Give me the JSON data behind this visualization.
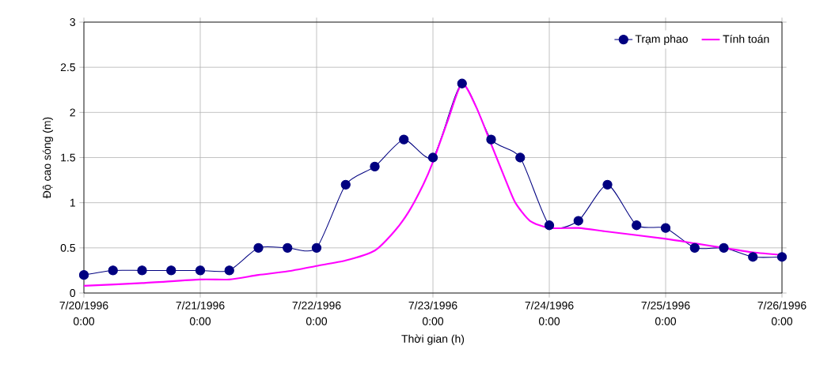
{
  "chart_data": {
    "type": "line",
    "xlabel": "Thời gian (h)",
    "ylabel": "Độ cao sóng (m)",
    "xlim": [
      "1996-07-20T00:00",
      "1996-07-26T00:00"
    ],
    "xticks": [
      {
        "value": "1996-07-20T00:00",
        "label": "7/20/1996 0:00"
      },
      {
        "value": "1996-07-21T00:00",
        "label": "7/21/1996 0:00"
      },
      {
        "value": "1996-07-22T00:00",
        "label": "7/22/1996 0:00"
      },
      {
        "value": "1996-07-23T00:00",
        "label": "7/23/1996 0:00"
      },
      {
        "value": "1996-07-24T00:00",
        "label": "7/24/1996 0:00"
      },
      {
        "value": "1996-07-25T00:00",
        "label": "7/25/1996 0:00"
      },
      {
        "value": "1996-07-26T00:00",
        "label": "7/26/1996 0:00"
      }
    ],
    "ylim": [
      0,
      3
    ],
    "yticks": [
      0,
      0.5,
      1,
      1.5,
      2,
      2.5,
      3
    ],
    "grid": true,
    "legend": "top right",
    "series": [
      {
        "name": "Trạm phao",
        "color": "#000080",
        "marker": "circle",
        "x": [
          "1996-07-20T00:00",
          "1996-07-20T06:00",
          "1996-07-20T12:00",
          "1996-07-20T18:00",
          "1996-07-21T00:00",
          "1996-07-21T06:00",
          "1996-07-21T12:00",
          "1996-07-21T18:00",
          "1996-07-22T00:00",
          "1996-07-22T06:00",
          "1996-07-22T12:00",
          "1996-07-22T18:00",
          "1996-07-23T00:00",
          "1996-07-23T06:00",
          "1996-07-23T12:00",
          "1996-07-23T18:00",
          "1996-07-24T00:00",
          "1996-07-24T06:00",
          "1996-07-24T12:00",
          "1996-07-24T18:00",
          "1996-07-25T00:00",
          "1996-07-25T06:00",
          "1996-07-25T12:00",
          "1996-07-25T18:00",
          "1996-07-26T00:00"
        ],
        "values": [
          0.2,
          0.25,
          0.25,
          0.25,
          0.25,
          0.25,
          0.5,
          0.5,
          0.5,
          1.2,
          1.4,
          1.7,
          1.5,
          2.32,
          1.7,
          1.5,
          0.75,
          0.8,
          1.2,
          0.75,
          0.72,
          0.5,
          0.5,
          0.4,
          0.4
        ]
      },
      {
        "name": "Tính toán",
        "color": "#ff00ff",
        "marker": "none",
        "x": [
          "1996-07-20T00:00",
          "1996-07-20T12:00",
          "1996-07-21T00:00",
          "1996-07-21T06:00",
          "1996-07-21T12:00",
          "1996-07-21T18:00",
          "1996-07-22T00:00",
          "1996-07-22T06:00",
          "1996-07-22T12:00",
          "1996-07-22T16:00",
          "1996-07-22T19:00",
          "1996-07-22T22:00",
          "1996-07-23T00:00",
          "1996-07-23T03:00",
          "1996-07-23T06:00",
          "1996-07-23T09:00",
          "1996-07-23T12:00",
          "1996-07-23T15:00",
          "1996-07-23T17:00",
          "1996-07-23T20:00",
          "1996-07-24T00:00",
          "1996-07-24T06:00",
          "1996-07-24T12:00",
          "1996-07-25T00:00",
          "1996-07-25T06:00",
          "1996-07-25T12:00",
          "1996-07-25T18:00",
          "1996-07-26T00:00"
        ],
        "values": [
          0.08,
          0.11,
          0.15,
          0.15,
          0.2,
          0.24,
          0.3,
          0.36,
          0.47,
          0.68,
          0.9,
          1.2,
          1.45,
          1.9,
          2.32,
          2.05,
          1.65,
          1.25,
          1.0,
          0.8,
          0.72,
          0.72,
          0.68,
          0.6,
          0.55,
          0.5,
          0.45,
          0.42
        ]
      }
    ]
  }
}
